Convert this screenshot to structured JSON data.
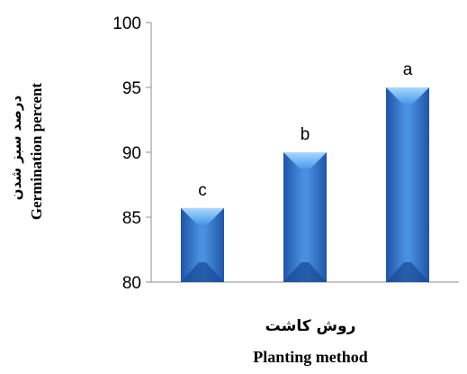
{
  "chart_data": {
    "type": "bar",
    "categories": [
      "",
      "",
      ""
    ],
    "values": [
      85.7,
      90,
      95
    ],
    "data_labels": [
      "c",
      "b",
      "a"
    ],
    "ylim": [
      80,
      100
    ],
    "yticks": [
      80,
      85,
      90,
      95,
      100
    ],
    "grid": false,
    "ylabel_fa": "درصد سبز شدن",
    "ylabel_en": "Germination percent",
    "xlabel_fa": "روش کاشت",
    "xlabel_en": "Planting method",
    "bar_color": "#3d7fd3",
    "bar_color_dark": "#1f55a8",
    "bar_color_light": "#7fb6ee"
  }
}
